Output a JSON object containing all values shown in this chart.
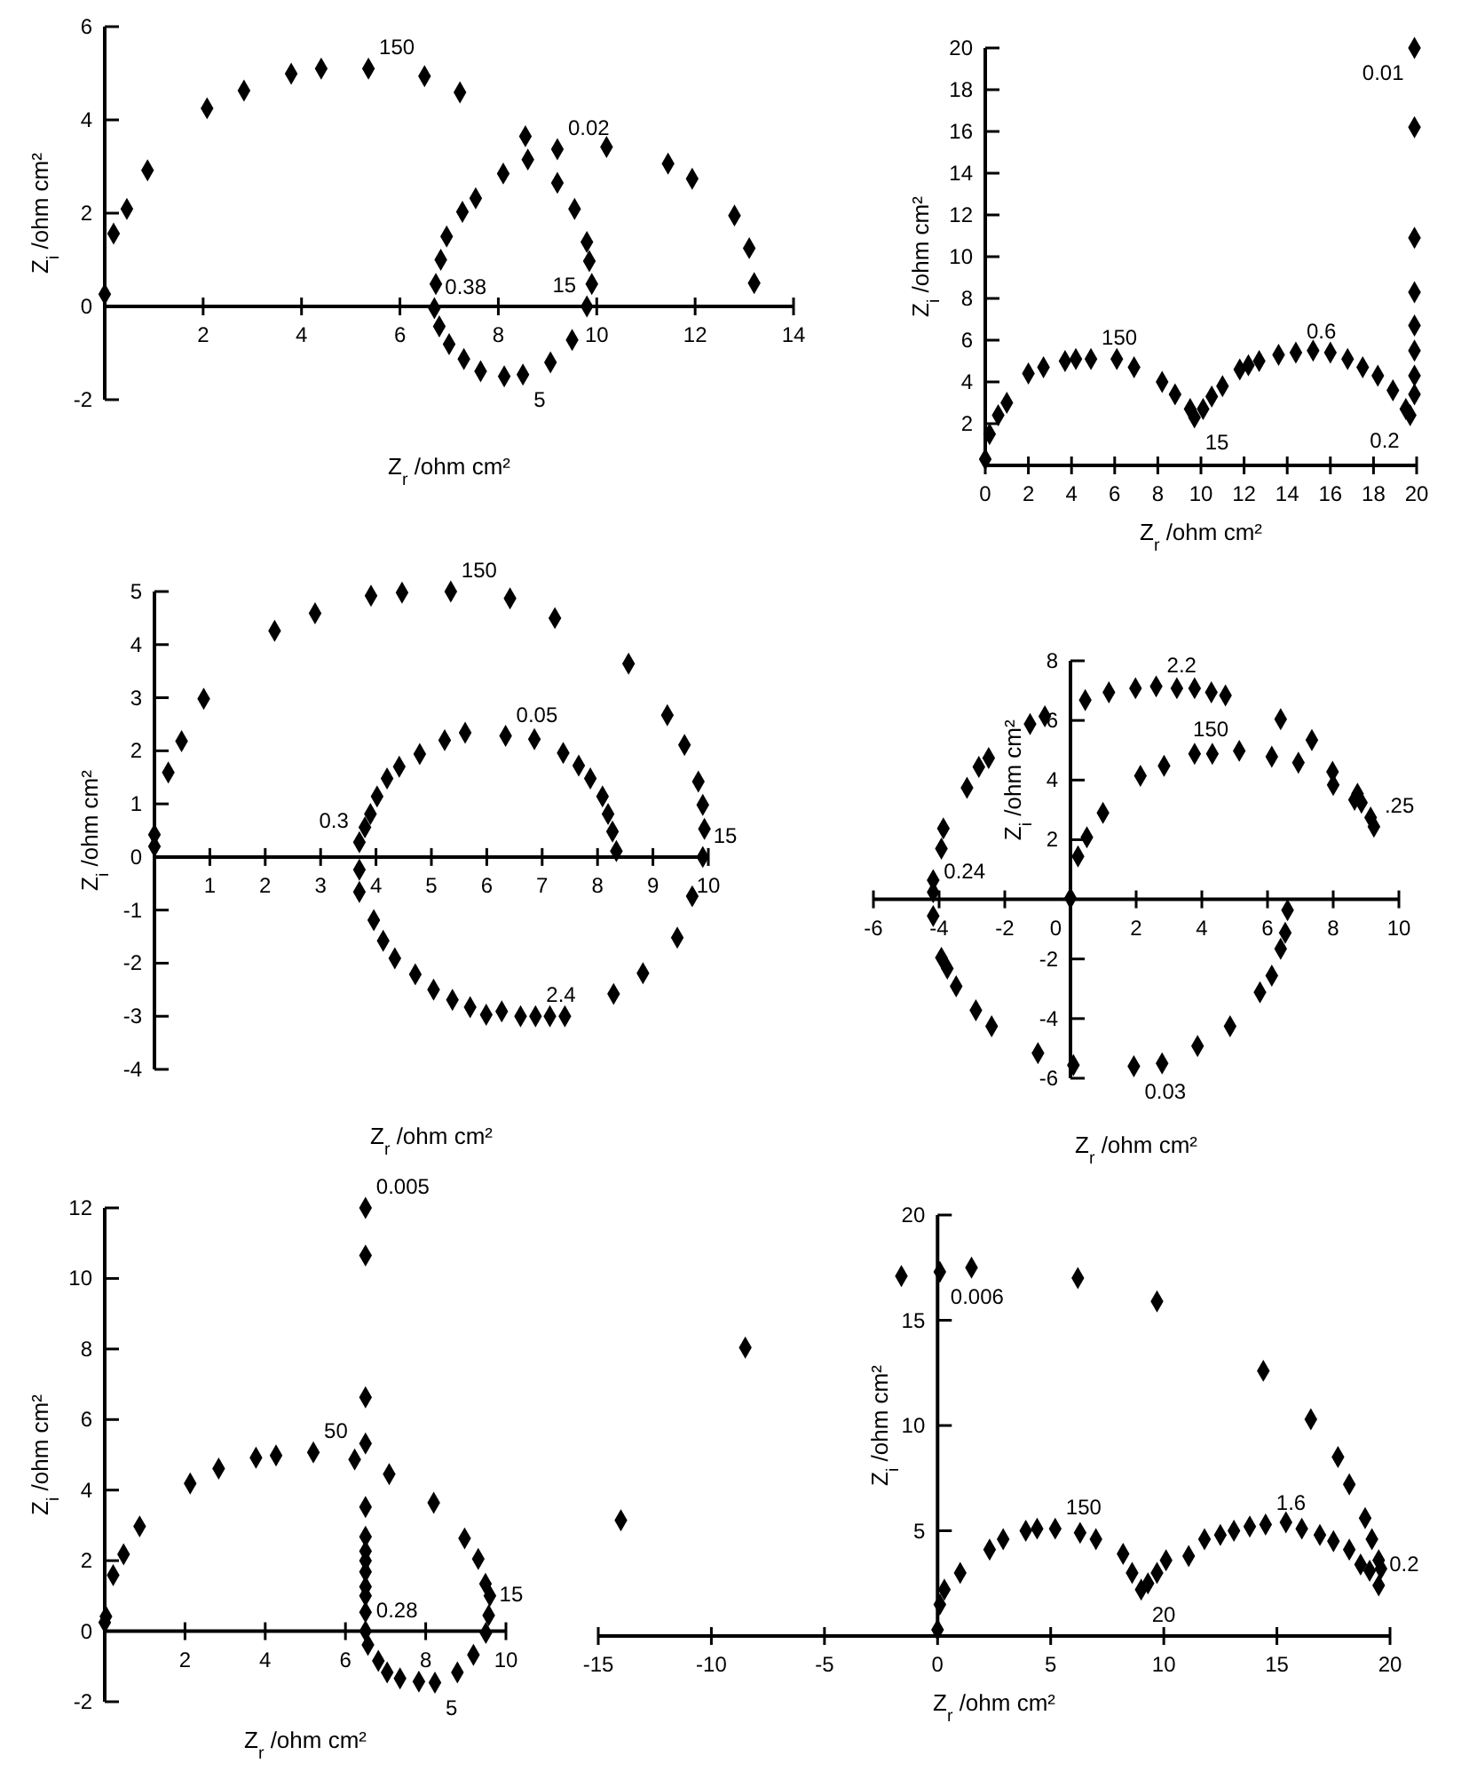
{
  "chart_data": [
    {
      "type": "scatter",
      "xlabel": "Z$_{r}$ /ohm cm²",
      "ylabel": "Z$_{i}$ /ohm cm²",
      "color": "#000000",
      "marker": "diamond",
      "xlim": [
        0,
        14
      ],
      "ylim": [
        -2,
        6
      ],
      "xticks": [
        2,
        4,
        6,
        8,
        10,
        12,
        14
      ],
      "yticks": [
        -2,
        0,
        2,
        4,
        6
      ],
      "x": [
        0,
        0.18,
        0.45,
        0.87,
        2.08,
        2.83,
        3.79,
        4.4,
        5.36,
        6.5,
        7.22,
        10.2,
        11.45,
        11.94,
        12.8,
        13.1,
        13.2,
        6.95,
        7.27,
        7.54,
        8.1,
        8.55,
        8.6,
        9.2,
        9.2,
        9.55,
        9.8,
        9.85,
        9.9,
        9.8,
        9.5,
        9.06,
        8.5,
        8.12,
        7.64,
        7.3,
        7.0,
        6.8,
        6.7,
        6.73,
        6.83
      ],
      "values": [
        0.26,
        1.56,
        2.09,
        2.92,
        4.25,
        4.63,
        4.99,
        5.1,
        5.1,
        4.94,
        4.59,
        3.42,
        3.06,
        2.74,
        1.95,
        1.25,
        0.5,
        1.5,
        2.03,
        2.32,
        2.85,
        3.65,
        3.15,
        3.37,
        2.65,
        2.09,
        1.38,
        0.97,
        0.48,
        0,
        -0.72,
        -1.2,
        -1.46,
        -1.5,
        -1.39,
        -1.13,
        -0.81,
        -0.43,
        -0.04,
        0.48,
        1.0
      ],
      "annotations": [
        {
          "text": "150",
          "x": 5.36,
          "y": 5.1
        },
        {
          "text": "0.02",
          "x": 9.2,
          "y": 3.37
        },
        {
          "text": "0.38",
          "x": 6.7,
          "y": -0.04
        },
        {
          "text": "15",
          "x": 9.8,
          "y": 0
        },
        {
          "text": "5",
          "x": 8.5,
          "y": -1.46
        }
      ]
    },
    {
      "type": "scatter",
      "xlabel": "Z$_{r}$ /ohm cm²",
      "ylabel": "Z$_{i}$ /ohm cm²",
      "color": "#000000",
      "marker": "diamond",
      "xlim": [
        0,
        20
      ],
      "ylim": [
        0,
        20
      ],
      "xticks": [
        0,
        2,
        4,
        6,
        8,
        10,
        12,
        14,
        16,
        18,
        20
      ],
      "yticks": [
        2,
        4,
        6,
        8,
        10,
        12,
        14,
        16,
        18,
        20
      ],
      "x": [
        0,
        0.2,
        0.6,
        1.0,
        2.0,
        2.7,
        3.7,
        4.2,
        4.9,
        6.1,
        6.9,
        8.2,
        8.8,
        9.5,
        9.7,
        10.1,
        10.5,
        11.0,
        11.8,
        12.2,
        12.7,
        13.6,
        14.4,
        15.2,
        16.0,
        16.8,
        17.5,
        18.2,
        18.9,
        19.5,
        19.7,
        19.9,
        19.9,
        19.9,
        19.9,
        19.9,
        19.9,
        19.9,
        19.9
      ],
      "values": [
        0.3,
        1.5,
        2.4,
        3.0,
        4.4,
        4.7,
        5.0,
        5.1,
        5.1,
        5.1,
        4.7,
        4.0,
        3.4,
        2.7,
        2.3,
        2.7,
        3.3,
        3.8,
        4.6,
        4.8,
        5.0,
        5.3,
        5.4,
        5.5,
        5.4,
        5.1,
        4.7,
        4.3,
        3.6,
        2.7,
        2.4,
        3.4,
        4.3,
        5.5,
        6.7,
        8.3,
        10.9,
        16.2,
        20.0
      ],
      "annotations": [
        {
          "text": "150",
          "x": 4.9,
          "y": 5.1
        },
        {
          "text": "15",
          "x": 9.7,
          "y": 2.3
        },
        {
          "text": "0.6",
          "x": 14.4,
          "y": 5.4
        },
        {
          "text": "0.01",
          "x": 19.9,
          "y": 20.0
        },
        {
          "text": "0.2",
          "x": 19.7,
          "y": 2.4
        }
      ]
    },
    {
      "type": "scatter",
      "xlabel": "Z$_{r}$ /ohm cm²",
      "ylabel": "Z$_{i}$ /ohm cm²",
      "color": "#000000",
      "marker": "diamond",
      "xlim": [
        0,
        10
      ],
      "ylim": [
        -4,
        5
      ],
      "xticks": [
        1,
        2,
        3,
        4,
        5,
        6,
        7,
        8,
        9,
        10
      ],
      "yticks": [
        -4,
        -3,
        -2,
        -1,
        0,
        1,
        2,
        3,
        4,
        5
      ],
      "x": [
        0,
        0,
        0.25,
        0.49,
        0.89,
        2.17,
        2.9,
        3.91,
        4.47,
        5.35,
        6.42,
        7.23,
        8.56,
        9.26,
        9.57,
        9.82,
        9.9,
        9.93,
        9.9,
        9.71,
        9.44,
        8.82,
        8.29,
        3.7,
        3.8,
        3.9,
        4.02,
        4.2,
        4.42,
        4.79,
        5.24,
        5.61,
        6.34,
        6.86,
        7.38,
        7.66,
        7.87,
        8.09,
        8.19,
        8.27,
        8.34,
        3.7,
        3.7,
        3.96,
        4.13,
        4.34,
        4.71,
        5.04,
        5.38,
        5.7,
        5.99,
        6.27,
        6.61,
        6.88,
        7.14,
        7.41
      ],
      "values": [
        0.42,
        0.2,
        1.59,
        2.18,
        2.98,
        4.26,
        4.59,
        4.92,
        4.98,
        5.0,
        4.87,
        4.5,
        3.64,
        2.67,
        2.11,
        1.42,
        0.98,
        0.53,
        0,
        -0.74,
        -1.52,
        -2.19,
        -2.58,
        0.28,
        0.56,
        0.81,
        1.14,
        1.48,
        1.7,
        1.94,
        2.2,
        2.34,
        2.28,
        2.22,
        1.96,
        1.72,
        1.48,
        1.14,
        0.81,
        0.48,
        0.11,
        -0.24,
        -0.66,
        -1.19,
        -1.58,
        -1.91,
        -2.21,
        -2.5,
        -2.69,
        -2.83,
        -2.97,
        -2.91,
        -3.0,
        -3.0,
        -3.0,
        -3.0
      ],
      "annotations": [
        {
          "text": "150",
          "x": 5.35,
          "y": 5.0
        },
        {
          "text": "0.05",
          "x": 6.34,
          "y": 2.28
        },
        {
          "text": "0.3",
          "x": 3.7,
          "y": 0.28
        },
        {
          "text": "15",
          "x": 9.9,
          "y": 0
        },
        {
          "text": "2.4",
          "x": 6.88,
          "y": -3.0
        }
      ]
    },
    {
      "type": "scatter",
      "xlabel": "Z$_{r}$ /ohm cm²",
      "ylabel": "Z$_{i}$ /ohm cm²",
      "color": "#000000",
      "marker": "diamond",
      "xlim": [
        -6,
        10
      ],
      "ylim": [
        -6,
        8
      ],
      "xticks": [
        -6,
        -4,
        -2,
        0,
        2,
        4,
        6,
        8,
        10
      ],
      "yticks": [
        -6,
        -4,
        -2,
        2,
        4,
        6,
        8
      ],
      "x": [
        0,
        0.23,
        0.5,
        0.99,
        2.13,
        2.85,
        3.78,
        4.32,
        5.14,
        6.13,
        6.94,
        8.0,
        8.65,
        9.14,
        0.45,
        1.17,
        1.98,
        2.61,
        3.24,
        3.78,
        4.29,
        4.72,
        6.4,
        7.35,
        7.98,
        8.74,
        8.86,
        9.24,
        6.61,
        6.54,
        6.4,
        6.13,
        5.77,
        4.86,
        3.87,
        2.79,
        1.93,
        0.09,
        -0.99,
        -2.4,
        -2.88,
        -3.48,
        -3.75,
        -3.93,
        -4.18,
        -4.18,
        -4.18,
        -3.93,
        -3.87,
        -3.15,
        -2.79,
        -2.49,
        -1.23,
        -0.78
      ],
      "values": [
        0.04,
        1.44,
        2.08,
        2.9,
        4.14,
        4.48,
        4.88,
        4.88,
        4.98,
        4.78,
        4.58,
        3.84,
        3.34,
        2.74,
        6.68,
        6.94,
        7.08,
        7.14,
        7.08,
        7.08,
        6.94,
        6.84,
        6.04,
        5.34,
        4.28,
        3.54,
        3.24,
        2.44,
        -0.36,
        -1.12,
        -1.66,
        -2.56,
        -3.12,
        -4.26,
        -4.92,
        -5.5,
        -5.6,
        -5.56,
        -5.16,
        -4.26,
        -3.72,
        -2.92,
        -2.32,
        -1.96,
        -0.56,
        0.24,
        0.64,
        1.7,
        2.38,
        3.74,
        4.44,
        4.74,
        5.88,
        6.14
      ],
      "annotations": [
        {
          "text": "2.2",
          "x": 2.61,
          "y": 7.14
        },
        {
          "text": "150",
          "x": 5.14,
          "y": 4.98
        },
        {
          "text": ".25",
          "x": 9.24,
          "y": 2.44
        },
        {
          "text": "0.24",
          "x": -4.18,
          "y": 0.24
        },
        {
          "text": "0.03",
          "x": 1.93,
          "y": -5.6
        }
      ]
    },
    {
      "type": "scatter",
      "xlabel": "Z$_{r}$ /ohm cm²",
      "ylabel": "Z$_{i}$ /ohm cm²",
      "color": "#000000",
      "marker": "diamond",
      "xlim": [
        0,
        10
      ],
      "ylim": [
        -2,
        12
      ],
      "xticks": [
        2,
        4,
        6,
        8,
        10
      ],
      "yticks": [
        -2,
        0,
        2,
        4,
        6,
        8,
        10,
        12
      ],
      "x": [
        0,
        0.03,
        0.21,
        0.47,
        0.87,
        2.13,
        2.84,
        3.77,
        4.27,
        5.2,
        6.23,
        7.09,
        8.2,
        8.97,
        9.31,
        9.49,
        9.6,
        9.57,
        9.5,
        9.19,
        8.79,
        8.23,
        7.83,
        7.36,
        7.04,
        6.82,
        6.56,
        6.5,
        6.5,
        6.5,
        6.5,
        6.5,
        6.5,
        6.5,
        6.5,
        6.5,
        6.5,
        6.5,
        6.5,
        6.5
      ],
      "values": [
        0.25,
        0.42,
        1.59,
        2.18,
        2.97,
        4.19,
        4.61,
        4.92,
        4.98,
        5.07,
        4.87,
        4.45,
        3.64,
        2.63,
        2.05,
        1.34,
        1.0,
        0.45,
        -0.05,
        -0.67,
        -1.17,
        -1.46,
        -1.43,
        -1.34,
        -1.17,
        -0.84,
        -0.39,
        0,
        0.54,
        1.0,
        1.26,
        1.68,
        2.0,
        2.27,
        2.68,
        3.52,
        5.32,
        6.63,
        10.65,
        12.0
      ],
      "annotations": [
        {
          "text": "0.005",
          "x": 6.5,
          "y": 12.0
        },
        {
          "text": "50",
          "x": 5.2,
          "y": 5.07
        },
        {
          "text": "0.28",
          "x": 6.5,
          "y": 0
        },
        {
          "text": "15",
          "x": 9.57,
          "y": 0.45
        },
        {
          "text": "5",
          "x": 8.23,
          "y": -1.46
        }
      ]
    },
    {
      "type": "scatter",
      "xlabel": "Z$_{r}$ /ohm cm²",
      "ylabel": "Z$_{i}$ /ohm cm²",
      "color": "#000000",
      "marker": "diamond",
      "xlim": [
        -15,
        20
      ],
      "ylim": [
        0,
        20
      ],
      "xticks": [
        -15,
        -10,
        -5,
        0,
        5,
        10,
        15,
        20
      ],
      "yticks": [
        5,
        10,
        15,
        20
      ],
      "x": [
        -14.0,
        -8.5,
        -1.6,
        0.1,
        1.5,
        6.2,
        9.7,
        14.4,
        16.5,
        17.7,
        18.2,
        18.9,
        19.2,
        19.5,
        19.6,
        0,
        0.1,
        0.3,
        1.0,
        2.3,
        2.9,
        3.9,
        4.4,
        5.2,
        6.3,
        7.0,
        8.2,
        8.6,
        9.0,
        9.3,
        9.7,
        10.1,
        11.1,
        11.8,
        12.5,
        13.1,
        13.8,
        14.5,
        15.4,
        16.1,
        16.9,
        17.5,
        18.2,
        18.7,
        19.1,
        19.5
      ],
      "values": [
        5.5,
        13.7,
        17.1,
        17.3,
        17.5,
        17.0,
        15.9,
        12.6,
        10.3,
        8.5,
        7.2,
        5.6,
        4.6,
        3.6,
        3.2,
        0.3,
        1.5,
        2.2,
        3.0,
        4.1,
        4.6,
        5.0,
        5.1,
        5.1,
        4.9,
        4.6,
        3.9,
        3.0,
        2.2,
        2.5,
        3.0,
        3.6,
        3.8,
        4.6,
        4.8,
        5.0,
        5.2,
        5.3,
        5.4,
        5.1,
        4.8,
        4.5,
        4.1,
        3.4,
        3.1,
        2.4
      ],
      "annotations": [
        {
          "text": "0.006",
          "x": 0.1,
          "y": 17.3
        },
        {
          "text": "150",
          "x": 5.2,
          "y": 5.1
        },
        {
          "text": "20",
          "x": 9.0,
          "y": 2.2
        },
        {
          "text": "1.6",
          "x": 14.5,
          "y": 5.3
        },
        {
          "text": "0.2",
          "x": 19.5,
          "y": 2.4
        }
      ]
    }
  ]
}
